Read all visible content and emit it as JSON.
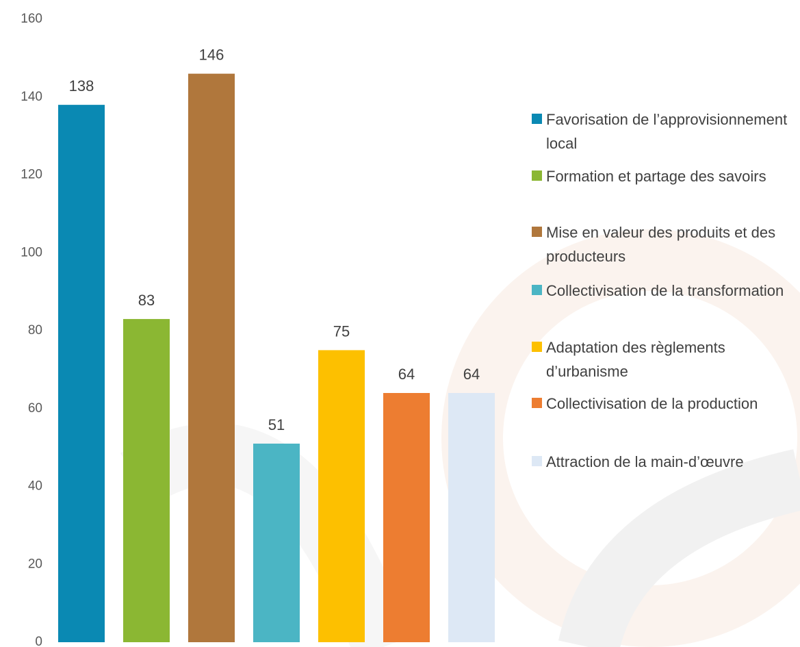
{
  "chart_data": {
    "type": "bar",
    "categories": [
      "Favorisation de l’approvisionnement local",
      "Formation et partage des savoirs",
      "Mise en valeur des produits et des producteurs",
      "Collectivisation de la transformation",
      "Adaptation des règlements d’urbanisme",
      "Collectivisation de la production",
      "Attraction de la main-d’œuvre"
    ],
    "values": [
      138,
      83,
      146,
      51,
      75,
      64,
      64
    ],
    "colors": [
      "#0a89b3",
      "#8bb733",
      "#b0773c",
      "#4bb5c4",
      "#fdc000",
      "#ed7d31",
      "#dde8f5"
    ],
    "ylim": [
      0,
      160
    ],
    "yticks": [
      0,
      20,
      40,
      60,
      80,
      100,
      120,
      140,
      160
    ],
    "grid": false,
    "legend": "right"
  }
}
